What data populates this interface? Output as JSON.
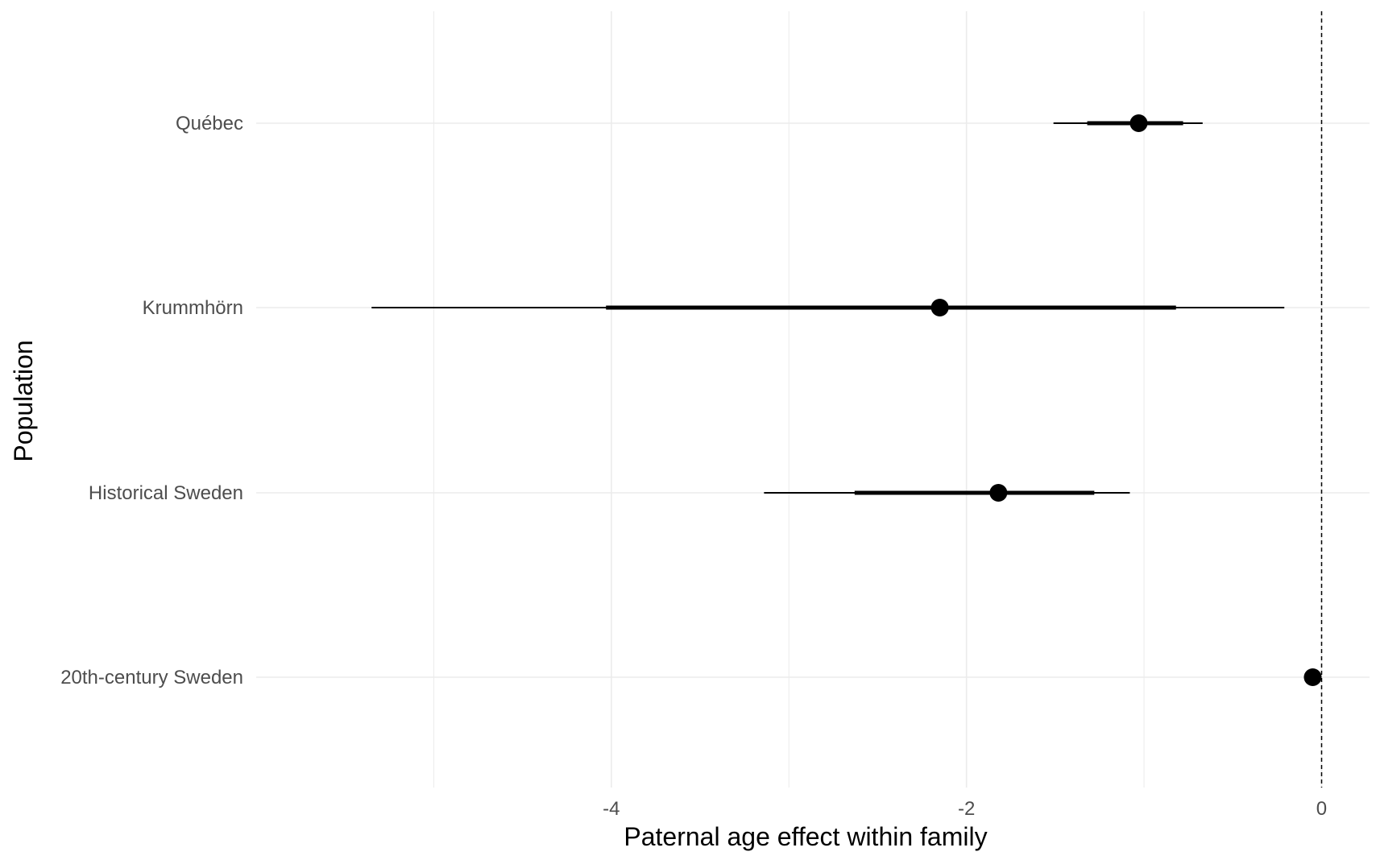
{
  "chart_data": {
    "type": "forest",
    "title": "",
    "xlabel": "Paternal age effect within family",
    "ylabel": "Population",
    "xlim": [
      -6.0,
      0.27
    ],
    "x_ticks": [
      -4,
      -2,
      0
    ],
    "x_tick_labels": [
      "-4",
      "-2",
      "0"
    ],
    "minor_gridlines_x": [
      -5,
      -3,
      -1
    ],
    "reference_line": 0,
    "categories": [
      "Québec",
      "Krummhörn",
      "Historical Sweden",
      "20th-century Sweden"
    ],
    "series": [
      {
        "name": "estimate",
        "values": [
          {
            "population": "Québec",
            "estimate": -1.03,
            "inner_low": -1.32,
            "inner_high": -0.78,
            "outer_low": -1.51,
            "outer_high": -0.67
          },
          {
            "population": "Krummhörn",
            "estimate": -2.15,
            "inner_low": -4.03,
            "inner_high": -0.82,
            "outer_low": -5.35,
            "outer_high": -0.21
          },
          {
            "population": "Historical Sweden",
            "estimate": -1.82,
            "inner_low": -2.63,
            "inner_high": -1.28,
            "outer_low": -3.14,
            "outer_high": -1.08
          },
          {
            "population": "20th-century Sweden",
            "estimate": -0.05,
            "inner_low": -0.08,
            "inner_high": -0.02,
            "outer_low": -0.09,
            "outer_high": -0.01
          }
        ]
      }
    ],
    "grid": true
  }
}
